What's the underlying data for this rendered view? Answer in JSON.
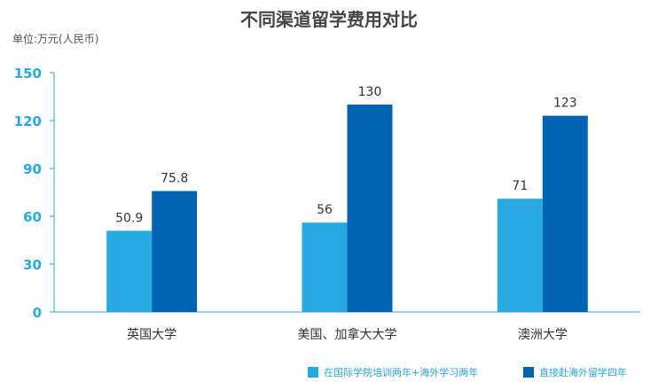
{
  "chart_data": {
    "type": "bar",
    "title": "不同渠道留学费用对比",
    "unit_label": "单位:万元(人民币)",
    "categories": [
      "英国大学",
      "美国、加拿大大学",
      "澳洲大学"
    ],
    "series": [
      {
        "name": "在国际学院培训两年+海外学习两年",
        "color": "#29a9e1",
        "values": [
          50.9,
          56,
          71
        ]
      },
      {
        "name": "直接赴海外留学四年",
        "color": "#0063b4",
        "values": [
          75.8,
          130,
          123
        ]
      }
    ],
    "value_labels": [
      [
        "50.9",
        "56",
        "71"
      ],
      [
        "75.8",
        "130",
        "123"
      ]
    ],
    "y_ticks": [
      "0",
      "30",
      "60",
      "90",
      "120",
      "150"
    ],
    "ylim": [
      0,
      150
    ],
    "axis_color": "#29a9e1",
    "legend_position": "bottom-right",
    "grid": false
  }
}
